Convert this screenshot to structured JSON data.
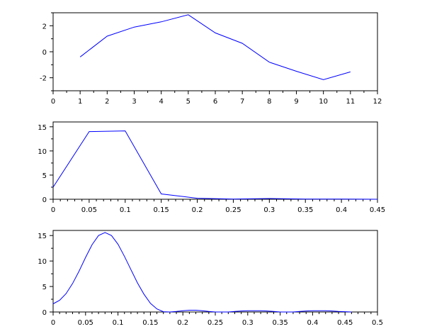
{
  "chart_data": [
    {
      "type": "line",
      "color": "#0000ff",
      "xlim": [
        0,
        12
      ],
      "ylim": [
        -3,
        3
      ],
      "xticks": [
        0,
        1,
        2,
        3,
        4,
        5,
        6,
        7,
        8,
        9,
        10,
        11,
        12
      ],
      "xminor": 1,
      "yticks": [
        -2,
        0,
        2
      ],
      "yminor": 1,
      "x": [
        1,
        2,
        3,
        4,
        5,
        6,
        7,
        8,
        9,
        10,
        11
      ],
      "y": [
        -0.4,
        1.2,
        1.9,
        2.3,
        2.85,
        1.45,
        0.65,
        -0.8,
        -1.5,
        -2.15,
        -1.55
      ]
    },
    {
      "type": "line",
      "color": "#0000ff",
      "xlim": [
        0,
        0.45
      ],
      "ylim": [
        0,
        16
      ],
      "xticks": [
        0,
        0.05,
        0.1,
        0.15,
        0.2,
        0.25,
        0.3,
        0.35,
        0.4,
        0.45
      ],
      "xminor": 4,
      "yticks": [
        0,
        5,
        10,
        15
      ],
      "yminor": 1,
      "x": [
        0,
        0.05,
        0.1,
        0.15,
        0.2,
        0.25,
        0.3,
        0.35,
        0.4,
        0.45
      ],
      "y": [
        2.5,
        14.0,
        14.15,
        1.1,
        0.2,
        0.05,
        0.15,
        0.05,
        0.05,
        0
      ]
    },
    {
      "type": "line",
      "color": "#0000ff",
      "xlim": [
        0,
        0.5
      ],
      "ylim": [
        0,
        16
      ],
      "xticks": [
        0,
        0.05,
        0.1,
        0.15,
        0.2,
        0.25,
        0.3,
        0.35,
        0.4,
        0.45,
        0.5
      ],
      "xminor": 4,
      "yticks": [
        0,
        5,
        10,
        15
      ],
      "yminor": 1,
      "x": [
        0,
        0.01,
        0.02,
        0.03,
        0.04,
        0.05,
        0.06,
        0.07,
        0.08,
        0.09,
        0.1,
        0.11,
        0.12,
        0.13,
        0.14,
        0.15,
        0.16,
        0.17,
        0.18,
        0.19,
        0.2,
        0.21,
        0.22,
        0.23,
        0.24,
        0.25,
        0.26,
        0.27,
        0.28,
        0.29,
        0.3,
        0.31,
        0.32,
        0.33,
        0.34,
        0.35,
        0.36,
        0.37,
        0.38,
        0.39,
        0.4,
        0.41,
        0.42,
        0.43,
        0.44,
        0.45,
        0.46
      ],
      "y": [
        1.6,
        2.3,
        3.6,
        5.6,
        8.0,
        10.7,
        13.2,
        15.0,
        15.6,
        15.0,
        13.3,
        10.9,
        8.3,
        5.7,
        3.5,
        1.7,
        0.6,
        0.05,
        0,
        0.1,
        0.25,
        0.35,
        0.35,
        0.25,
        0.1,
        0,
        0,
        0,
        0.1,
        0.2,
        0.25,
        0.25,
        0.25,
        0.2,
        0.1,
        0,
        0,
        0,
        0.1,
        0.2,
        0.25,
        0.25,
        0.25,
        0.2,
        0.1,
        0.05,
        0
      ]
    }
  ]
}
